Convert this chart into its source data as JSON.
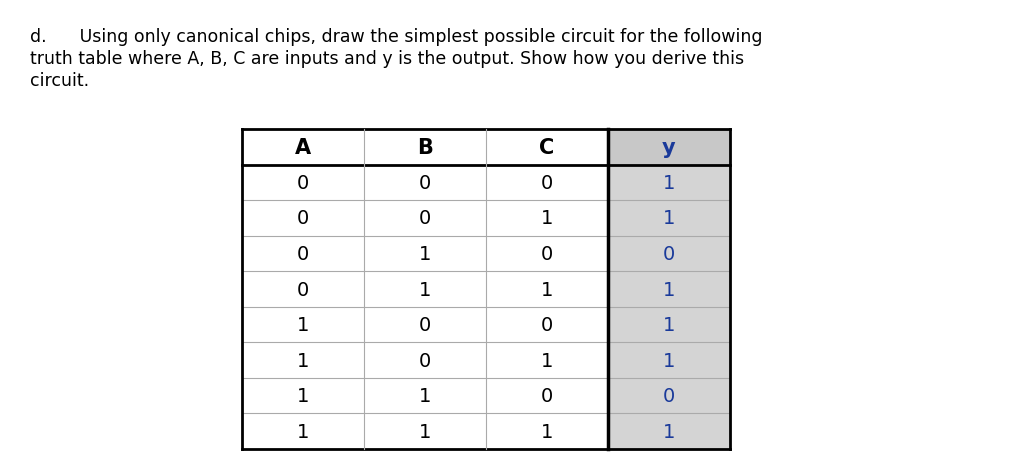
{
  "title_line1": "d.      Using only canonical chips, draw the simplest possible circuit for the following",
  "title_line2": "truth table where A, B, C are inputs and y is the output. Show how you derive this",
  "title_line3": "circuit.",
  "headers": [
    "A",
    "B",
    "C",
    "y"
  ],
  "rows": [
    [
      0,
      0,
      0,
      1
    ],
    [
      0,
      0,
      1,
      1
    ],
    [
      0,
      1,
      0,
      0
    ],
    [
      0,
      1,
      1,
      1
    ],
    [
      1,
      0,
      0,
      1
    ],
    [
      1,
      0,
      1,
      1
    ],
    [
      1,
      1,
      0,
      0
    ],
    [
      1,
      1,
      1,
      1
    ]
  ],
  "header_bg_ABC": "#ffffff",
  "header_bg_y": "#c8c8c8",
  "row_bg_ABC": "#ffffff",
  "row_bg_y": "#d4d4d4",
  "header_text_color_ABC": "#000000",
  "header_text_color_y": "#1a3a9a",
  "row_text_color_ABC": "#000000",
  "row_text_color_y": "#1a3a9a",
  "border_color_outer": "#000000",
  "border_color_inner": "#aaaaaa",
  "thick_border_color": "#000000",
  "font_size_title": 12.5,
  "font_size_table": 14,
  "font_size_header": 15
}
